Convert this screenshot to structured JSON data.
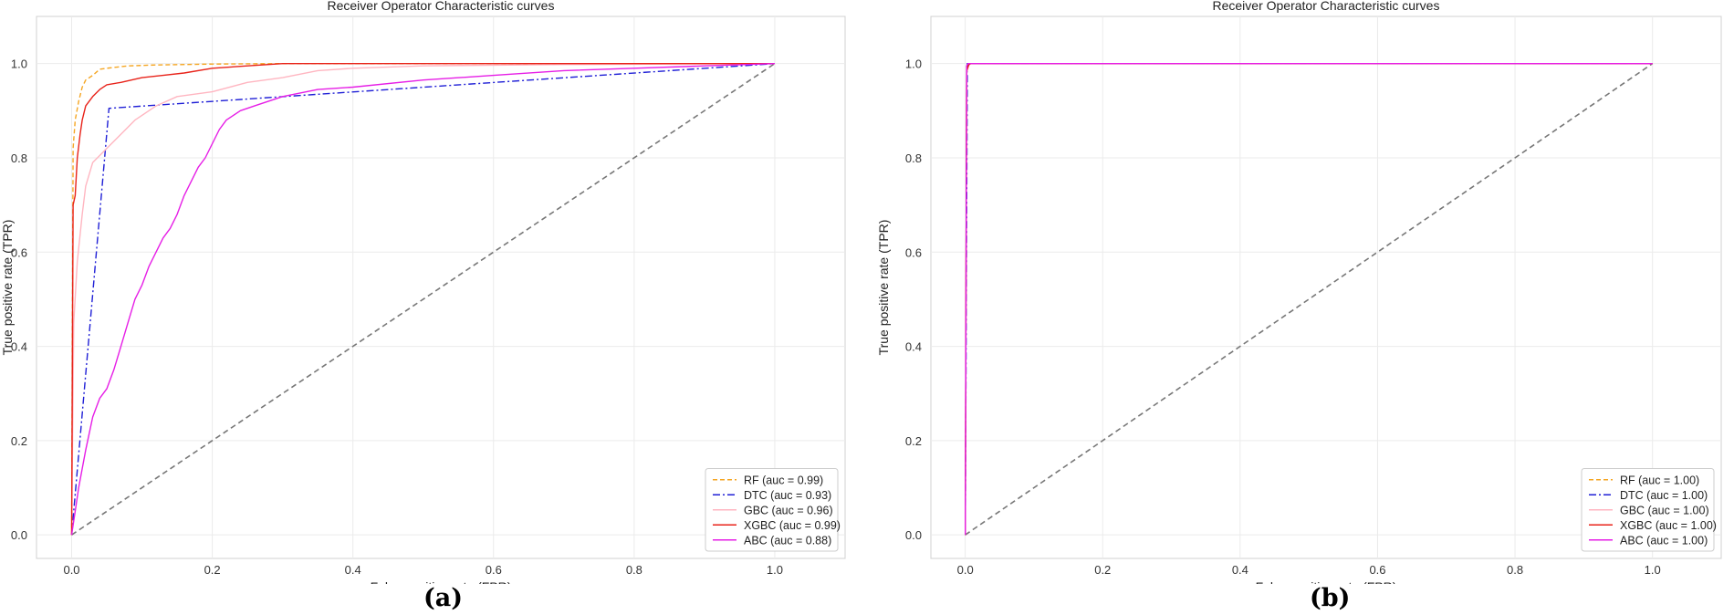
{
  "chart_data": [
    {
      "type": "line",
      "title": "Receiver Operator Characteristic curves",
      "xlabel": "False positive rate (FPR)",
      "ylabel": "True positive rate (TPR)",
      "xlim": [
        -0.05,
        1.1
      ],
      "ylim": [
        -0.05,
        1.1
      ],
      "xticks": [
        0.0,
        0.2,
        0.4,
        0.6,
        0.8,
        1.0
      ],
      "yticks": [
        0.0,
        0.2,
        0.4,
        0.6,
        0.8,
        1.0
      ],
      "xtick_labels": [
        "0.0",
        "0.2",
        "0.4",
        "0.6",
        "0.8",
        "1.0"
      ],
      "ytick_labels": [
        "0.0",
        "0.2",
        "0.4",
        "0.6",
        "0.8",
        "1.0"
      ],
      "grid": true,
      "legend_position": "lower-right",
      "panel_label": "(a)",
      "chance_line": {
        "points": [
          [
            0,
            0
          ],
          [
            1,
            1
          ]
        ],
        "color": "#777777",
        "dash": "dashed"
      },
      "series": [
        {
          "name": "RF (auc = 0.99)",
          "color": "#f5a623",
          "dash": "dashed",
          "points": [
            [
              0,
              0
            ],
            [
              0.002,
              0.82
            ],
            [
              0.005,
              0.88
            ],
            [
              0.01,
              0.92
            ],
            [
              0.015,
              0.95
            ],
            [
              0.02,
              0.965
            ],
            [
              0.03,
              0.975
            ],
            [
              0.04,
              0.988
            ],
            [
              0.05,
              0.99
            ],
            [
              0.08,
              0.995
            ],
            [
              0.12,
              0.997
            ],
            [
              0.2,
              0.999
            ],
            [
              0.3,
              1.0
            ],
            [
              1.0,
              1.0
            ]
          ]
        },
        {
          "name": "DTC (auc = 0.93)",
          "color": "#1f1fd6",
          "dash": "dashdot",
          "points": [
            [
              0,
              0
            ],
            [
              0.053,
              0.905
            ],
            [
              1.0,
              1.0
            ]
          ]
        },
        {
          "name": "GBC (auc = 0.96)",
          "color": "#ffb6c1",
          "dash": "solid",
          "points": [
            [
              0,
              0
            ],
            [
              0.003,
              0.45
            ],
            [
              0.008,
              0.58
            ],
            [
              0.015,
              0.68
            ],
            [
              0.02,
              0.74
            ],
            [
              0.03,
              0.79
            ],
            [
              0.05,
              0.82
            ],
            [
              0.07,
              0.85
            ],
            [
              0.09,
              0.88
            ],
            [
              0.12,
              0.91
            ],
            [
              0.15,
              0.93
            ],
            [
              0.2,
              0.94
            ],
            [
              0.25,
              0.96
            ],
            [
              0.3,
              0.97
            ],
            [
              0.35,
              0.985
            ],
            [
              0.4,
              0.99
            ],
            [
              0.5,
              0.995
            ],
            [
              0.7,
              0.998
            ],
            [
              1.0,
              1.0
            ]
          ]
        },
        {
          "name": "XGBC (auc = 0.99)",
          "color": "#e8231a",
          "dash": "solid",
          "points": [
            [
              0,
              0
            ],
            [
              0.002,
              0.7
            ],
            [
              0.005,
              0.72
            ],
            [
              0.008,
              0.8
            ],
            [
              0.012,
              0.85
            ],
            [
              0.015,
              0.88
            ],
            [
              0.02,
              0.91
            ],
            [
              0.03,
              0.93
            ],
            [
              0.04,
              0.945
            ],
            [
              0.05,
              0.955
            ],
            [
              0.07,
              0.96
            ],
            [
              0.1,
              0.97
            ],
            [
              0.13,
              0.975
            ],
            [
              0.16,
              0.98
            ],
            [
              0.2,
              0.99
            ],
            [
              0.25,
              0.995
            ],
            [
              0.3,
              1.0
            ],
            [
              1.0,
              1.0
            ]
          ]
        },
        {
          "name": "ABC (auc = 0.88)",
          "color": "#e61ee6",
          "dash": "solid",
          "points": [
            [
              0,
              0
            ],
            [
              0.005,
              0.05
            ],
            [
              0.01,
              0.1
            ],
            [
              0.02,
              0.18
            ],
            [
              0.03,
              0.25
            ],
            [
              0.04,
              0.29
            ],
            [
              0.05,
              0.31
            ],
            [
              0.06,
              0.35
            ],
            [
              0.07,
              0.4
            ],
            [
              0.08,
              0.45
            ],
            [
              0.09,
              0.5
            ],
            [
              0.1,
              0.53
            ],
            [
              0.11,
              0.57
            ],
            [
              0.12,
              0.6
            ],
            [
              0.13,
              0.63
            ],
            [
              0.14,
              0.65
            ],
            [
              0.15,
              0.68
            ],
            [
              0.16,
              0.72
            ],
            [
              0.17,
              0.75
            ],
            [
              0.18,
              0.78
            ],
            [
              0.19,
              0.8
            ],
            [
              0.2,
              0.83
            ],
            [
              0.21,
              0.86
            ],
            [
              0.22,
              0.88
            ],
            [
              0.24,
              0.9
            ],
            [
              0.26,
              0.91
            ],
            [
              0.3,
              0.93
            ],
            [
              0.35,
              0.945
            ],
            [
              0.4,
              0.95
            ],
            [
              0.5,
              0.965
            ],
            [
              0.6,
              0.975
            ],
            [
              0.7,
              0.985
            ],
            [
              0.8,
              0.99
            ],
            [
              0.9,
              0.995
            ],
            [
              1.0,
              1.0
            ]
          ]
        }
      ]
    },
    {
      "type": "line",
      "title": "Receiver Operator Characteristic curves",
      "xlabel": "False positive rate (FPR)",
      "ylabel": "True positive rate (TPR)",
      "xlim": [
        -0.05,
        1.1
      ],
      "ylim": [
        -0.05,
        1.1
      ],
      "xticks": [
        0.0,
        0.2,
        0.4,
        0.6,
        0.8,
        1.0
      ],
      "yticks": [
        0.0,
        0.2,
        0.4,
        0.6,
        0.8,
        1.0
      ],
      "xtick_labels": [
        "0.0",
        "0.2",
        "0.4",
        "0.6",
        "0.8",
        "1.0"
      ],
      "ytick_labels": [
        "0.0",
        "0.2",
        "0.4",
        "0.6",
        "0.8",
        "1.0"
      ],
      "grid": true,
      "legend_position": "lower-right",
      "panel_label": "(b)",
      "chance_line": {
        "points": [
          [
            0,
            0
          ],
          [
            1,
            1
          ]
        ],
        "color": "#777777",
        "dash": "dashed"
      },
      "series": [
        {
          "name": "RF (auc = 1.00)",
          "color": "#f5a623",
          "dash": "dashed",
          "points": [
            [
              0,
              0
            ],
            [
              0.002,
              0.99
            ],
            [
              0.006,
              1.0
            ],
            [
              1.0,
              1.0
            ]
          ]
        },
        {
          "name": "DTC (auc = 1.00)",
          "color": "#1f1fd6",
          "dash": "dashdot",
          "points": [
            [
              0,
              0
            ],
            [
              0.003,
              1.0
            ],
            [
              1.0,
              1.0
            ]
          ]
        },
        {
          "name": "GBC (auc = 1.00)",
          "color": "#ffb6c1",
          "dash": "solid",
          "points": [
            [
              0,
              0
            ],
            [
              0.002,
              0.98
            ],
            [
              0.006,
              1.0
            ],
            [
              1.0,
              1.0
            ]
          ]
        },
        {
          "name": "XGBC (auc = 1.00)",
          "color": "#e8231a",
          "dash": "solid",
          "points": [
            [
              0,
              0
            ],
            [
              0.002,
              0.985
            ],
            [
              0.005,
              0.997
            ],
            [
              0.008,
              1.0
            ],
            [
              1.0,
              1.0
            ]
          ]
        },
        {
          "name": "ABC (auc = 1.00)",
          "color": "#e61ee6",
          "dash": "solid",
          "points": [
            [
              0,
              0
            ],
            [
              0.002,
              0.995
            ],
            [
              0.004,
              1.0
            ],
            [
              1.0,
              1.0
            ]
          ]
        }
      ]
    }
  ]
}
